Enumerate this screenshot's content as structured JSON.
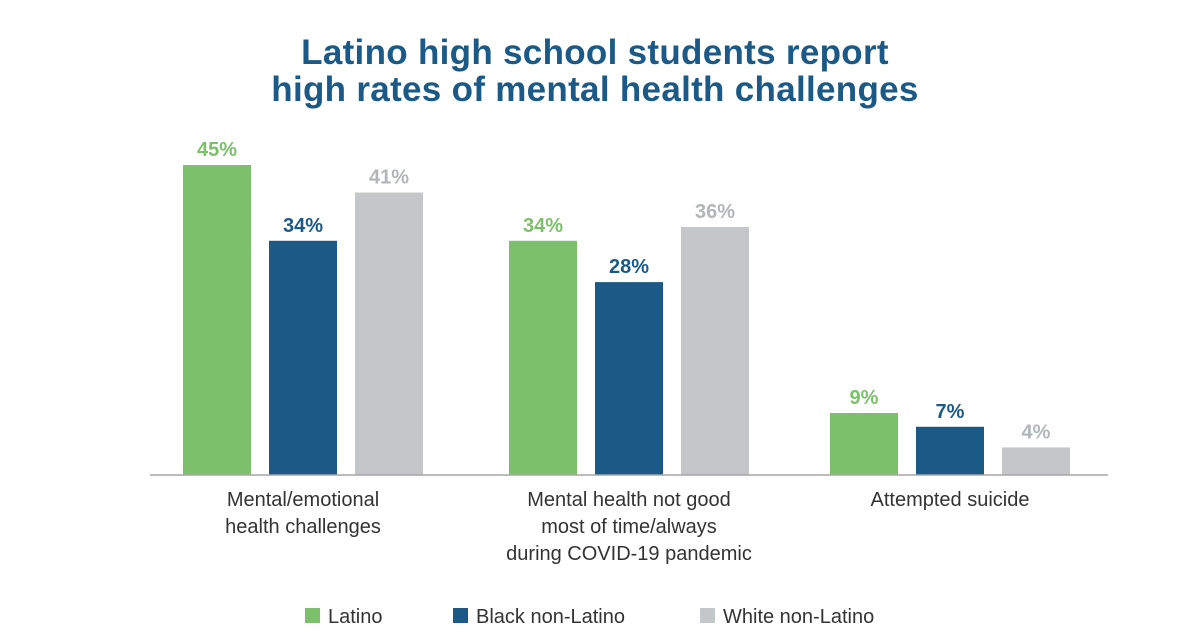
{
  "chart_data": {
    "type": "bar",
    "title": "Latino high school students report high rates of mental health challenges",
    "title_lines": [
      "Latino high school students report",
      "high rates of mental health challenges"
    ],
    "categories": [
      [
        "Mental/emotional",
        "health challenges"
      ],
      [
        "Mental health not good",
        "most of time/always",
        "during COVID-19 pandemic"
      ],
      [
        "Attempted suicide"
      ]
    ],
    "series": [
      {
        "name": "Latino",
        "color": "#7dc06b",
        "label_color": "#7dc06b",
        "values": [
          45,
          34,
          9
        ]
      },
      {
        "name": "Black non-Latino",
        "color": "#1b5a86",
        "label_color": "#1b5a86",
        "values": [
          34,
          28,
          7
        ]
      },
      {
        "name": "White non-Latino",
        "color": "#c4c6c9",
        "label_color": "#b3b5b8",
        "values": [
          41,
          36,
          4
        ]
      }
    ],
    "value_suffix": "%",
    "ylim": [
      0,
      45
    ],
    "legend_position": "bottom-center",
    "grid": false
  }
}
